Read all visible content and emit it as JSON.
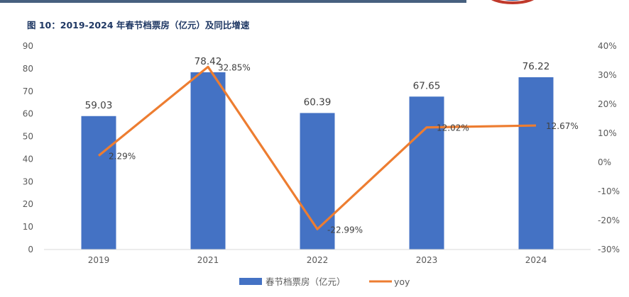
{
  "header": {
    "figure_title": "图 10：2019-2024 年春节档票房（亿元）及同比增速"
  },
  "colors": {
    "bar": "#4472c4",
    "line": "#ed7d31",
    "header_bar": "#47607f",
    "title": "#1f3864"
  },
  "chart_data": {
    "type": "bar",
    "categories": [
      "2019",
      "2021",
      "2022",
      "2023",
      "2024"
    ],
    "series": [
      {
        "name": "春节档票房（亿元）",
        "type": "bar",
        "axis": "left",
        "values": [
          59.03,
          78.42,
          60.39,
          67.65,
          76.22
        ],
        "labels": [
          "59.03",
          "78.42",
          "60.39",
          "67.65",
          "76.22"
        ]
      },
      {
        "name": "yoy",
        "type": "line",
        "axis": "right",
        "values": [
          2.29,
          32.85,
          -22.99,
          12.02,
          12.67
        ],
        "labels": [
          "2.29%",
          "32.85%",
          "-22.99%",
          "12.02%",
          "12.67%"
        ]
      }
    ],
    "y_left": {
      "min": 0,
      "max": 90,
      "ticks": [
        "0",
        "10",
        "20",
        "30",
        "40",
        "50",
        "60",
        "70",
        "80",
        "90"
      ]
    },
    "y_right": {
      "min": -30,
      "max": 40,
      "ticks": [
        "-30%",
        "-20%",
        "-10%",
        "0%",
        "10%",
        "20%",
        "30%",
        "40%"
      ]
    },
    "legend_position": "bottom",
    "grid": false
  }
}
